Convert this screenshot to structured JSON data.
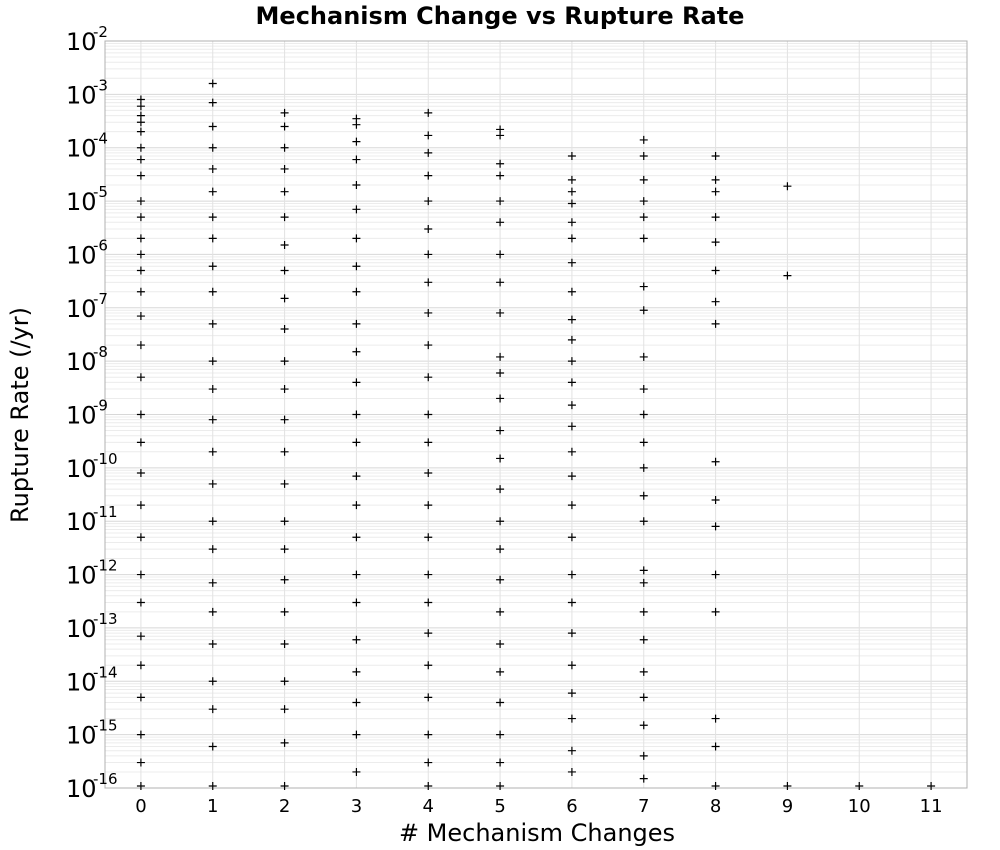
{
  "chart_data": {
    "type": "scatter",
    "title": "Mechanism Change vs Rupture Rate",
    "xlabel": "# Mechanism Changes",
    "ylabel": "Rupture Rate (/yr)",
    "xlim": [
      -0.5,
      11.5
    ],
    "x_ticks": [
      0,
      1,
      2,
      3,
      4,
      5,
      6,
      7,
      8,
      9,
      10,
      11
    ],
    "ylim": [
      1e-16,
      0.01
    ],
    "y_scale": "log",
    "y_ticks": [
      {
        "base": "10",
        "exp": "-16",
        "value": 1e-16
      },
      {
        "base": "10",
        "exp": "-15",
        "value": 1e-15
      },
      {
        "base": "10",
        "exp": "-14",
        "value": 1e-14
      },
      {
        "base": "10",
        "exp": "-13",
        "value": 1e-13
      },
      {
        "base": "10",
        "exp": "-12",
        "value": 1e-12
      },
      {
        "base": "10",
        "exp": "-11",
        "value": 1e-11
      },
      {
        "base": "10",
        "exp": "-10",
        "value": 1e-10
      },
      {
        "base": "10",
        "exp": "-9",
        "value": 1e-09
      },
      {
        "base": "10",
        "exp": "-8",
        "value": 1e-08
      },
      {
        "base": "10",
        "exp": "-7",
        "value": 1e-07
      },
      {
        "base": "10",
        "exp": "-6",
        "value": 1e-06
      },
      {
        "base": "10",
        "exp": "-5",
        "value": 1e-05
      },
      {
        "base": "10",
        "exp": "-4",
        "value": 0.0001
      },
      {
        "base": "10",
        "exp": "-3",
        "value": 0.001
      },
      {
        "base": "10",
        "exp": "-2",
        "value": 0.01
      }
    ],
    "grid": true,
    "marker": "+",
    "marker_color": "#000000",
    "series": [
      {
        "points": [
          {
            "x": 0,
            "y": 0.0008
          },
          {
            "x": 0,
            "y": 0.0006
          },
          {
            "x": 0,
            "y": 0.0004
          },
          {
            "x": 0,
            "y": 0.0003
          },
          {
            "x": 0,
            "y": 0.0002
          },
          {
            "x": 0,
            "y": 0.0001
          },
          {
            "x": 0,
            "y": 6e-05
          },
          {
            "x": 0,
            "y": 3e-05
          },
          {
            "x": 0,
            "y": 1e-05
          },
          {
            "x": 0,
            "y": 5e-06
          },
          {
            "x": 0,
            "y": 2e-06
          },
          {
            "x": 0,
            "y": 1e-06
          },
          {
            "x": 0,
            "y": 5e-07
          },
          {
            "x": 0,
            "y": 2e-07
          },
          {
            "x": 0,
            "y": 7e-08
          },
          {
            "x": 0,
            "y": 2e-08
          },
          {
            "x": 0,
            "y": 5e-09
          },
          {
            "x": 0,
            "y": 1e-09
          },
          {
            "x": 0,
            "y": 3e-10
          },
          {
            "x": 0,
            "y": 8e-11
          },
          {
            "x": 0,
            "y": 2e-11
          },
          {
            "x": 0,
            "y": 5e-12
          },
          {
            "x": 0,
            "y": 1e-12
          },
          {
            "x": 0,
            "y": 3e-13
          },
          {
            "x": 0,
            "y": 7e-14
          },
          {
            "x": 0,
            "y": 2e-14
          },
          {
            "x": 0,
            "y": 5e-15
          },
          {
            "x": 0,
            "y": 1e-15
          },
          {
            "x": 0,
            "y": 3e-16
          },
          {
            "x": 0,
            "y": 1e-16
          },
          {
            "x": 1,
            "y": 0.0016
          },
          {
            "x": 1,
            "y": 0.0007
          },
          {
            "x": 1,
            "y": 0.00025
          },
          {
            "x": 1,
            "y": 0.0001
          },
          {
            "x": 1,
            "y": 4e-05
          },
          {
            "x": 1,
            "y": 1.5e-05
          },
          {
            "x": 1,
            "y": 5e-06
          },
          {
            "x": 1,
            "y": 2e-06
          },
          {
            "x": 1,
            "y": 6e-07
          },
          {
            "x": 1,
            "y": 2e-07
          },
          {
            "x": 1,
            "y": 5e-08
          },
          {
            "x": 1,
            "y": 1e-08
          },
          {
            "x": 1,
            "y": 3e-09
          },
          {
            "x": 1,
            "y": 8e-10
          },
          {
            "x": 1,
            "y": 2e-10
          },
          {
            "x": 1,
            "y": 5e-11
          },
          {
            "x": 1,
            "y": 1e-11
          },
          {
            "x": 1,
            "y": 3e-12
          },
          {
            "x": 1,
            "y": 7e-13
          },
          {
            "x": 1,
            "y": 2e-13
          },
          {
            "x": 1,
            "y": 5e-14
          },
          {
            "x": 1,
            "y": 1e-14
          },
          {
            "x": 1,
            "y": 3e-15
          },
          {
            "x": 1,
            "y": 6e-16
          },
          {
            "x": 1,
            "y": 1e-16
          },
          {
            "x": 2,
            "y": 0.00045
          },
          {
            "x": 2,
            "y": 0.00025
          },
          {
            "x": 2,
            "y": 0.0001
          },
          {
            "x": 2,
            "y": 4e-05
          },
          {
            "x": 2,
            "y": 1.5e-05
          },
          {
            "x": 2,
            "y": 5e-06
          },
          {
            "x": 2,
            "y": 1.5e-06
          },
          {
            "x": 2,
            "y": 5e-07
          },
          {
            "x": 2,
            "y": 1.5e-07
          },
          {
            "x": 2,
            "y": 4e-08
          },
          {
            "x": 2,
            "y": 1e-08
          },
          {
            "x": 2,
            "y": 3e-09
          },
          {
            "x": 2,
            "y": 8e-10
          },
          {
            "x": 2,
            "y": 2e-10
          },
          {
            "x": 2,
            "y": 5e-11
          },
          {
            "x": 2,
            "y": 1e-11
          },
          {
            "x": 2,
            "y": 3e-12
          },
          {
            "x": 2,
            "y": 8e-13
          },
          {
            "x": 2,
            "y": 2e-13
          },
          {
            "x": 2,
            "y": 5e-14
          },
          {
            "x": 2,
            "y": 1e-14
          },
          {
            "x": 2,
            "y": 3e-15
          },
          {
            "x": 2,
            "y": 7e-16
          },
          {
            "x": 2,
            "y": 1e-16
          },
          {
            "x": 3,
            "y": 0.00035
          },
          {
            "x": 3,
            "y": 0.00027
          },
          {
            "x": 3,
            "y": 0.00013
          },
          {
            "x": 3,
            "y": 6e-05
          },
          {
            "x": 3,
            "y": 2e-05
          },
          {
            "x": 3,
            "y": 7e-06
          },
          {
            "x": 3,
            "y": 2e-06
          },
          {
            "x": 3,
            "y": 6e-07
          },
          {
            "x": 3,
            "y": 2e-07
          },
          {
            "x": 3,
            "y": 5e-08
          },
          {
            "x": 3,
            "y": 1.5e-08
          },
          {
            "x": 3,
            "y": 4e-09
          },
          {
            "x": 3,
            "y": 1e-09
          },
          {
            "x": 3,
            "y": 3e-10
          },
          {
            "x": 3,
            "y": 7e-11
          },
          {
            "x": 3,
            "y": 2e-11
          },
          {
            "x": 3,
            "y": 5e-12
          },
          {
            "x": 3,
            "y": 1e-12
          },
          {
            "x": 3,
            "y": 3e-13
          },
          {
            "x": 3,
            "y": 6e-14
          },
          {
            "x": 3,
            "y": 1.5e-14
          },
          {
            "x": 3,
            "y": 4e-15
          },
          {
            "x": 3,
            "y": 1e-15
          },
          {
            "x": 3,
            "y": 2e-16
          },
          {
            "x": 4,
            "y": 0.00045
          },
          {
            "x": 4,
            "y": 0.00017
          },
          {
            "x": 4,
            "y": 8e-05
          },
          {
            "x": 4,
            "y": 3e-05
          },
          {
            "x": 4,
            "y": 1e-05
          },
          {
            "x": 4,
            "y": 3e-06
          },
          {
            "x": 4,
            "y": 1e-06
          },
          {
            "x": 4,
            "y": 3e-07
          },
          {
            "x": 4,
            "y": 8e-08
          },
          {
            "x": 4,
            "y": 2e-08
          },
          {
            "x": 4,
            "y": 5e-09
          },
          {
            "x": 4,
            "y": 1e-09
          },
          {
            "x": 4,
            "y": 3e-10
          },
          {
            "x": 4,
            "y": 8e-11
          },
          {
            "x": 4,
            "y": 2e-11
          },
          {
            "x": 4,
            "y": 5e-12
          },
          {
            "x": 4,
            "y": 1e-12
          },
          {
            "x": 4,
            "y": 3e-13
          },
          {
            "x": 4,
            "y": 8e-14
          },
          {
            "x": 4,
            "y": 2e-14
          },
          {
            "x": 4,
            "y": 5e-15
          },
          {
            "x": 4,
            "y": 1e-15
          },
          {
            "x": 4,
            "y": 3e-16
          },
          {
            "x": 4,
            "y": 1e-16
          },
          {
            "x": 5,
            "y": 0.00022
          },
          {
            "x": 5,
            "y": 0.00017
          },
          {
            "x": 5,
            "y": 5e-05
          },
          {
            "x": 5,
            "y": 3e-05
          },
          {
            "x": 5,
            "y": 1e-05
          },
          {
            "x": 5,
            "y": 4e-06
          },
          {
            "x": 5,
            "y": 1e-06
          },
          {
            "x": 5,
            "y": 3e-07
          },
          {
            "x": 5,
            "y": 8e-08
          },
          {
            "x": 5,
            "y": 1.2e-08
          },
          {
            "x": 5,
            "y": 6e-09
          },
          {
            "x": 5,
            "y": 2e-09
          },
          {
            "x": 5,
            "y": 5e-10
          },
          {
            "x": 5,
            "y": 1.5e-10
          },
          {
            "x": 5,
            "y": 4e-11
          },
          {
            "x": 5,
            "y": 1e-11
          },
          {
            "x": 5,
            "y": 3e-12
          },
          {
            "x": 5,
            "y": 8e-13
          },
          {
            "x": 5,
            "y": 2e-13
          },
          {
            "x": 5,
            "y": 5e-14
          },
          {
            "x": 5,
            "y": 1.5e-14
          },
          {
            "x": 5,
            "y": 4e-15
          },
          {
            "x": 5,
            "y": 1e-15
          },
          {
            "x": 5,
            "y": 3e-16
          },
          {
            "x": 5,
            "y": 1e-16
          },
          {
            "x": 6,
            "y": 7e-05
          },
          {
            "x": 6,
            "y": 2.5e-05
          },
          {
            "x": 6,
            "y": 1.5e-05
          },
          {
            "x": 6,
            "y": 9e-06
          },
          {
            "x": 6,
            "y": 4e-06
          },
          {
            "x": 6,
            "y": 2e-06
          },
          {
            "x": 6,
            "y": 7e-07
          },
          {
            "x": 6,
            "y": 2e-07
          },
          {
            "x": 6,
            "y": 6e-08
          },
          {
            "x": 6,
            "y": 2.5e-08
          },
          {
            "x": 6,
            "y": 1e-08
          },
          {
            "x": 6,
            "y": 4e-09
          },
          {
            "x": 6,
            "y": 1.5e-09
          },
          {
            "x": 6,
            "y": 6e-10
          },
          {
            "x": 6,
            "y": 2e-10
          },
          {
            "x": 6,
            "y": 7e-11
          },
          {
            "x": 6,
            "y": 2e-11
          },
          {
            "x": 6,
            "y": 5e-12
          },
          {
            "x": 6,
            "y": 1e-12
          },
          {
            "x": 6,
            "y": 3e-13
          },
          {
            "x": 6,
            "y": 8e-14
          },
          {
            "x": 6,
            "y": 2e-14
          },
          {
            "x": 6,
            "y": 6e-15
          },
          {
            "x": 6,
            "y": 2e-15
          },
          {
            "x": 6,
            "y": 5e-16
          },
          {
            "x": 6,
            "y": 2e-16
          },
          {
            "x": 7,
            "y": 0.00014
          },
          {
            "x": 7,
            "y": 7e-05
          },
          {
            "x": 7,
            "y": 2.5e-05
          },
          {
            "x": 7,
            "y": 1e-05
          },
          {
            "x": 7,
            "y": 5e-06
          },
          {
            "x": 7,
            "y": 2e-06
          },
          {
            "x": 7,
            "y": 2.5e-07
          },
          {
            "x": 7,
            "y": 9e-08
          },
          {
            "x": 7,
            "y": 1.2e-08
          },
          {
            "x": 7,
            "y": 3e-09
          },
          {
            "x": 7,
            "y": 1e-09
          },
          {
            "x": 7,
            "y": 3e-10
          },
          {
            "x": 7,
            "y": 1e-10
          },
          {
            "x": 7,
            "y": 3e-11
          },
          {
            "x": 7,
            "y": 1e-11
          },
          {
            "x": 7,
            "y": 1.2e-12
          },
          {
            "x": 7,
            "y": 7e-13
          },
          {
            "x": 7,
            "y": 2e-13
          },
          {
            "x": 7,
            "y": 6e-14
          },
          {
            "x": 7,
            "y": 1.5e-14
          },
          {
            "x": 7,
            "y": 5e-15
          },
          {
            "x": 7,
            "y": 1.5e-15
          },
          {
            "x": 7,
            "y": 4e-16
          },
          {
            "x": 7,
            "y": 1.5e-16
          },
          {
            "x": 8,
            "y": 7e-05
          },
          {
            "x": 8,
            "y": 2.5e-05
          },
          {
            "x": 8,
            "y": 1.5e-05
          },
          {
            "x": 8,
            "y": 5e-06
          },
          {
            "x": 8,
            "y": 1.7e-06
          },
          {
            "x": 8,
            "y": 5e-07
          },
          {
            "x": 8,
            "y": 1.3e-07
          },
          {
            "x": 8,
            "y": 5e-08
          },
          {
            "x": 8,
            "y": 1.3e-10
          },
          {
            "x": 8,
            "y": 2.5e-11
          },
          {
            "x": 8,
            "y": 8e-12
          },
          {
            "x": 8,
            "y": 1e-12
          },
          {
            "x": 8,
            "y": 2e-13
          },
          {
            "x": 8,
            "y": 2e-15
          },
          {
            "x": 8,
            "y": 6e-16
          },
          {
            "x": 8,
            "y": 1e-16
          },
          {
            "x": 9,
            "y": 1.9e-05
          },
          {
            "x": 9,
            "y": 4e-07
          },
          {
            "x": 9,
            "y": 1e-16
          },
          {
            "x": 10,
            "y": 1e-16
          },
          {
            "x": 11,
            "y": 1e-16
          }
        ]
      }
    ]
  }
}
